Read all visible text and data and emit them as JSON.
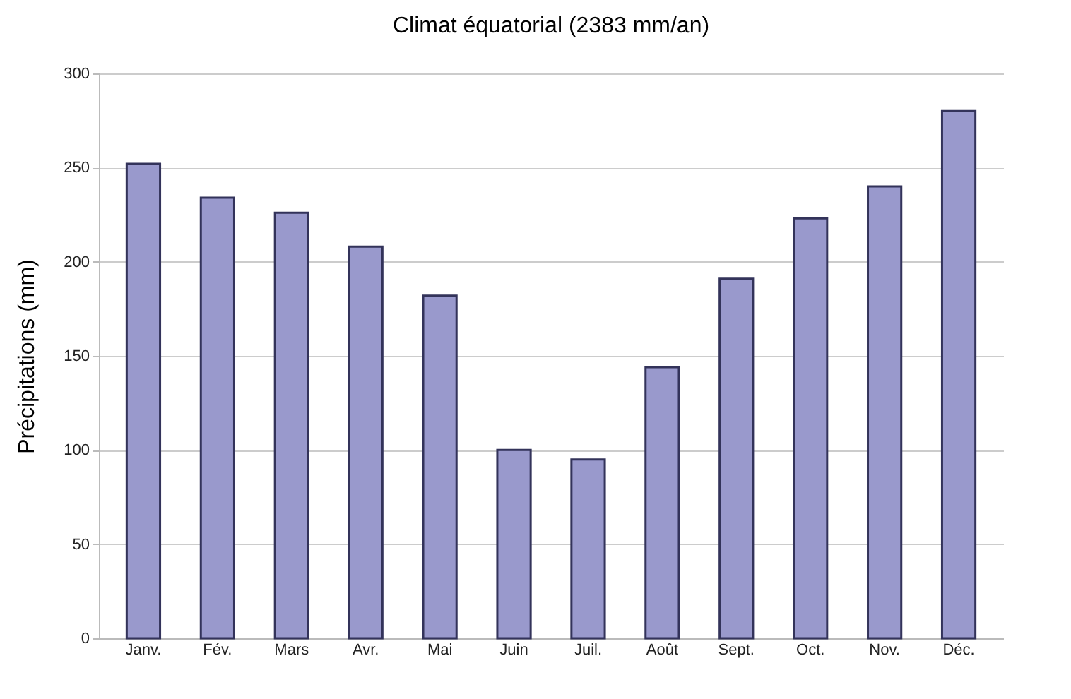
{
  "chart_data": {
    "type": "bar",
    "title": "Climat équatorial (2383 mm/an)",
    "ylabel": "Précipitations (mm)",
    "categories": [
      "Janv.",
      "Fév.",
      "Mars",
      "Avr.",
      "Mai",
      "Juin",
      "Juil.",
      "Août",
      "Sept.",
      "Oct.",
      "Nov.",
      "Déc."
    ],
    "values": [
      252,
      234,
      226,
      208,
      182,
      100,
      95,
      144,
      191,
      223,
      240,
      280
    ],
    "color": "#9999cc",
    "ylim": [
      0,
      300
    ],
    "yticks": [
      0,
      50,
      100,
      150,
      200,
      250,
      300
    ],
    "grid": "y"
  }
}
